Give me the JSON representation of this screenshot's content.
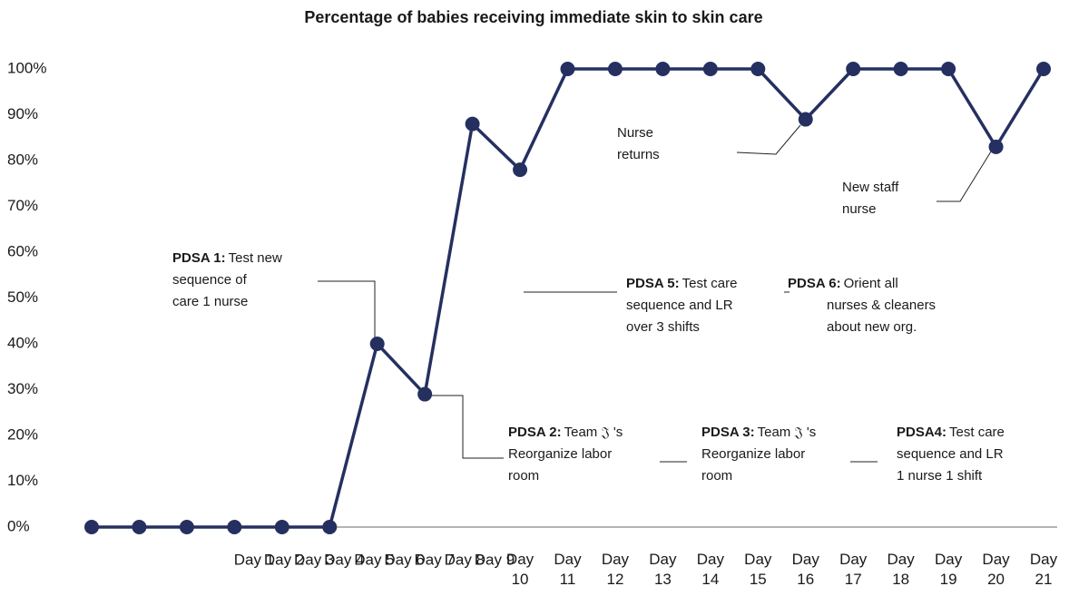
{
  "chart_data": {
    "type": "line",
    "title": "Percentage of babies receiving immediate skin to skin care",
    "categories": [
      "Day 1",
      "Day 2",
      "Day 3",
      "Day 4",
      "Day 5",
      "Day 6",
      "Day 7",
      "Day 8",
      "Day 9",
      "Day 10",
      "Day 11",
      "Day 12",
      "Day 13",
      "Day 14",
      "Day 15",
      "Day 16",
      "Day 17",
      "Day 18",
      "Day 19",
      "Day 20",
      "Day 21"
    ],
    "series": [
      {
        "name": "Percentage",
        "color": "#253060",
        "values": [
          0,
          0,
          0,
          0,
          0,
          0,
          40,
          29,
          88,
          78,
          100,
          100,
          100,
          100,
          100,
          89,
          100,
          100,
          100,
          83,
          100
        ]
      }
    ],
    "ylim": [
      0,
      100
    ],
    "yticks": [
      {
        "value": 0,
        "label": "0%"
      },
      {
        "value": 10,
        "label": "10%"
      },
      {
        "value": 20,
        "label": "20%"
      },
      {
        "value": 30,
        "label": "30%"
      },
      {
        "value": 40,
        "label": "40%"
      },
      {
        "value": 50,
        "label": "50%"
      },
      {
        "value": 60,
        "label": "60%"
      },
      {
        "value": 70,
        "label": "70%"
      },
      {
        "value": 80,
        "label": "80%"
      },
      {
        "value": 90,
        "label": "90%"
      },
      {
        "value": 100,
        "label": "100%"
      }
    ],
    "grid": false,
    "annotations": [
      {
        "bold": "PDSA 1:",
        "lines": [
          "Test new",
          "sequence  of",
          "care  1 nurse"
        ]
      },
      {
        "bold": "PDSA 2:",
        "lines": [
          "Team 𝔍 's",
          "Reorganize  labor",
          "room"
        ]
      },
      {
        "bold": "PDSA 3:",
        "lines": [
          "Team 𝔍 's",
          "Reorganize  labor",
          "room"
        ]
      },
      {
        "bold": "PDSA4:",
        "lines": [
          "Test care",
          "sequence  and  LR",
          "1 nurse 1 shift"
        ]
      },
      {
        "bold": "PDSA 5:",
        "lines": [
          "Test care",
          "sequence and LR",
          "over 3 shifts"
        ]
      },
      {
        "bold": "PDSA 6:",
        "lines": [
          "Orient all",
          "nurses & cleaners",
          "about new org."
        ]
      },
      {
        "lines": [
          "Nurse",
          "returns"
        ]
      },
      {
        "lines": [
          "New staff",
          "nurse"
        ]
      }
    ]
  }
}
